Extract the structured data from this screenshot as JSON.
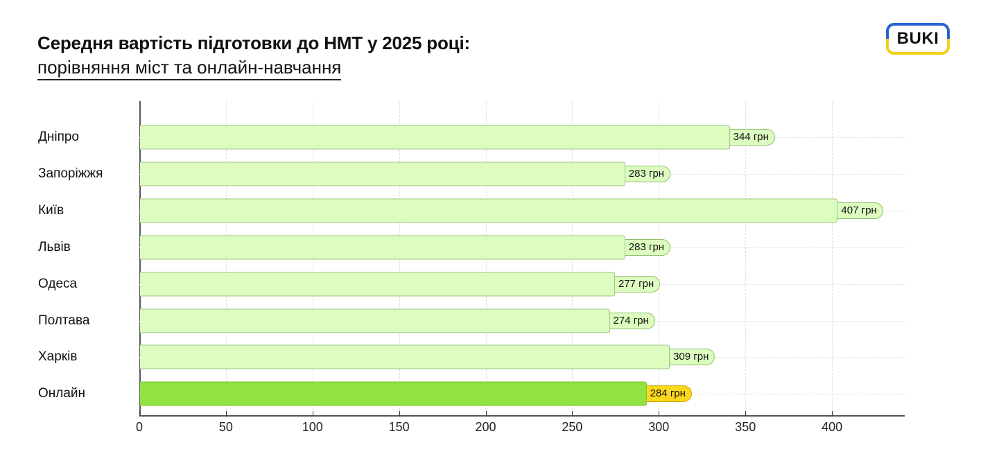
{
  "header": {
    "title": "Середня вартість підготовки до НМТ у 2025 році:",
    "subtitle": "порівняння міст та онлайн-навчання",
    "logo_text": "BUKI"
  },
  "colors": {
    "city_bar": "#dcfcc0",
    "city_label_bg": "#dcfcc0",
    "online_bar": "#92e342",
    "online_label_bg": "#fad91c",
    "logo_blue": "#2a63d6",
    "logo_yellow": "#f5cf1d"
  },
  "chart_data": {
    "type": "bar",
    "orientation": "horizontal",
    "title": "Середня вартість підготовки до НМТ у 2025 році: порівняння міст та онлайн-навчання",
    "xlabel": "",
    "ylabel": "",
    "unit": "грн",
    "categories": [
      "Дніпро",
      "Запоріжжя",
      "Київ",
      "Львів",
      "Одеса",
      "Полтава",
      "Харків",
      "Онлайн"
    ],
    "values": [
      344,
      283,
      407,
      283,
      277,
      274,
      309,
      284
    ],
    "value_labels": [
      "344 грн",
      "283 грн",
      "407 грн",
      "283 грн",
      "277 грн",
      "274 грн",
      "309 грн",
      "284 грн"
    ],
    "highlight": "Онлайн",
    "xlim": [
      0,
      442
    ],
    "xticks": [
      0,
      50,
      100,
      150,
      200,
      250,
      300,
      350,
      400
    ],
    "grid": true,
    "legend": null
  }
}
